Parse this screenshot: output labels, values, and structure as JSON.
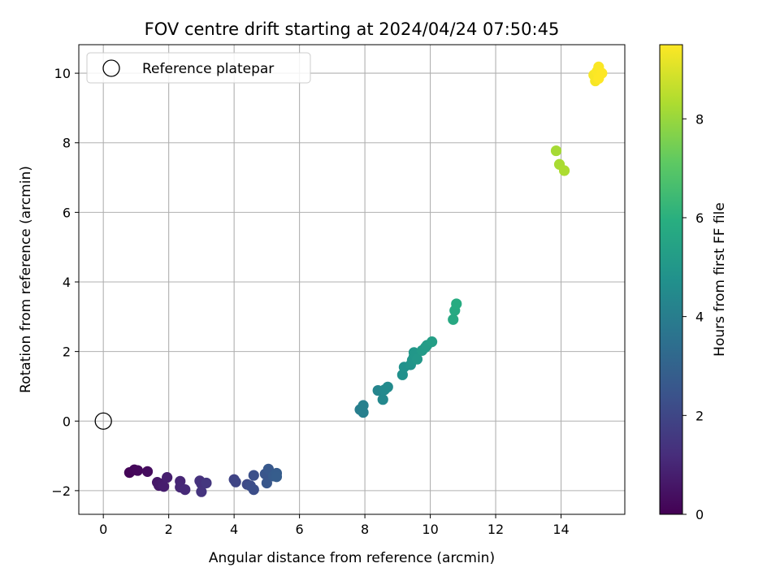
{
  "chart_data": {
    "type": "scatter",
    "title": "FOV centre drift starting at 2024/04/24 07:50:45",
    "xlabel": "Angular distance from reference (arcmin)",
    "ylabel": "Rotation from reference (arcmin)",
    "xlim": [
      -0.75,
      15.95
    ],
    "ylim": [
      -2.68,
      10.82
    ],
    "xticks": [
      "0",
      "2",
      "4",
      "6",
      "8",
      "10",
      "12",
      "14"
    ],
    "xtick_values": [
      0,
      2,
      4,
      6,
      8,
      10,
      12,
      14
    ],
    "yticks": [
      "−2",
      "0",
      "2",
      "4",
      "6",
      "8",
      "10"
    ],
    "ytick_values": [
      -2,
      0,
      2,
      4,
      6,
      8,
      10
    ],
    "grid": true,
    "legend_position": "upper-left",
    "reference": {
      "label": "Reference platepar",
      "x": 0,
      "y": 0
    },
    "colorbar": {
      "label": "Hours from first FF file",
      "min": 0,
      "max": 9.5,
      "ticks": [
        "0",
        "2",
        "4",
        "6",
        "8"
      ],
      "tick_values": [
        0,
        2,
        4,
        6,
        8
      ],
      "colormap": "viridis"
    },
    "points": [
      {
        "x": 0.8,
        "y": -1.48,
        "c": 0.1
      },
      {
        "x": 0.95,
        "y": -1.4,
        "c": 0.15
      },
      {
        "x": 1.05,
        "y": -1.42,
        "c": 0.2
      },
      {
        "x": 1.35,
        "y": -1.45,
        "c": 0.3
      },
      {
        "x": 1.65,
        "y": -1.76,
        "c": 0.6
      },
      {
        "x": 1.7,
        "y": -1.85,
        "c": 0.65
      },
      {
        "x": 1.8,
        "y": -1.8,
        "c": 0.7
      },
      {
        "x": 1.85,
        "y": -1.88,
        "c": 0.75
      },
      {
        "x": 1.95,
        "y": -1.62,
        "c": 0.8
      },
      {
        "x": 2.35,
        "y": -1.73,
        "c": 1.0
      },
      {
        "x": 2.35,
        "y": -1.9,
        "c": 1.05
      },
      {
        "x": 2.5,
        "y": -1.97,
        "c": 1.1
      },
      {
        "x": 2.95,
        "y": -1.72,
        "c": 1.3
      },
      {
        "x": 3.0,
        "y": -1.8,
        "c": 1.35
      },
      {
        "x": 3.0,
        "y": -2.03,
        "c": 1.4
      },
      {
        "x": 3.15,
        "y": -1.78,
        "c": 1.5
      },
      {
        "x": 4.0,
        "y": -1.68,
        "c": 1.9
      },
      {
        "x": 4.05,
        "y": -1.75,
        "c": 1.95
      },
      {
        "x": 4.4,
        "y": -1.82,
        "c": 2.1
      },
      {
        "x": 4.5,
        "y": -1.86,
        "c": 2.2
      },
      {
        "x": 4.6,
        "y": -1.97,
        "c": 2.25
      },
      {
        "x": 4.6,
        "y": -1.56,
        "c": 2.3
      },
      {
        "x": 4.95,
        "y": -1.52,
        "c": 2.5
      },
      {
        "x": 5.0,
        "y": -1.78,
        "c": 2.55
      },
      {
        "x": 5.05,
        "y": -1.38,
        "c": 2.6
      },
      {
        "x": 5.2,
        "y": -1.58,
        "c": 2.7
      },
      {
        "x": 5.3,
        "y": -1.5,
        "c": 2.75
      },
      {
        "x": 5.3,
        "y": -1.6,
        "c": 2.8
      },
      {
        "x": 7.85,
        "y": 0.33,
        "c": 4.0
      },
      {
        "x": 7.95,
        "y": 0.25,
        "c": 4.05
      },
      {
        "x": 7.95,
        "y": 0.45,
        "c": 4.1
      },
      {
        "x": 8.4,
        "y": 0.88,
        "c": 4.3
      },
      {
        "x": 8.55,
        "y": 0.62,
        "c": 4.4
      },
      {
        "x": 8.6,
        "y": 0.9,
        "c": 4.45
      },
      {
        "x": 8.7,
        "y": 0.98,
        "c": 4.5
      },
      {
        "x": 9.15,
        "y": 1.33,
        "c": 4.7
      },
      {
        "x": 9.2,
        "y": 1.55,
        "c": 4.75
      },
      {
        "x": 9.4,
        "y": 1.62,
        "c": 4.85
      },
      {
        "x": 9.45,
        "y": 1.75,
        "c": 4.9
      },
      {
        "x": 9.5,
        "y": 1.85,
        "c": 4.95
      },
      {
        "x": 9.5,
        "y": 1.97,
        "c": 5.0
      },
      {
        "x": 9.6,
        "y": 1.78,
        "c": 5.05
      },
      {
        "x": 9.75,
        "y": 2.03,
        "c": 5.1
      },
      {
        "x": 9.85,
        "y": 2.12,
        "c": 5.15
      },
      {
        "x": 9.9,
        "y": 2.18,
        "c": 5.2
      },
      {
        "x": 10.05,
        "y": 2.28,
        "c": 5.3
      },
      {
        "x": 10.7,
        "y": 2.92,
        "c": 5.7
      },
      {
        "x": 10.75,
        "y": 3.18,
        "c": 5.75
      },
      {
        "x": 10.8,
        "y": 3.37,
        "c": 5.8
      },
      {
        "x": 13.85,
        "y": 7.77,
        "c": 8.2
      },
      {
        "x": 13.95,
        "y": 7.38,
        "c": 8.25
      },
      {
        "x": 14.1,
        "y": 7.2,
        "c": 8.3
      },
      {
        "x": 15.0,
        "y": 9.95,
        "c": 9.4
      },
      {
        "x": 15.05,
        "y": 9.78,
        "c": 9.4
      },
      {
        "x": 15.1,
        "y": 10.05,
        "c": 9.45
      },
      {
        "x": 15.15,
        "y": 10.18,
        "c": 9.45
      },
      {
        "x": 15.15,
        "y": 9.85,
        "c": 9.5
      },
      {
        "x": 15.25,
        "y": 10.0,
        "c": 9.5
      }
    ]
  }
}
